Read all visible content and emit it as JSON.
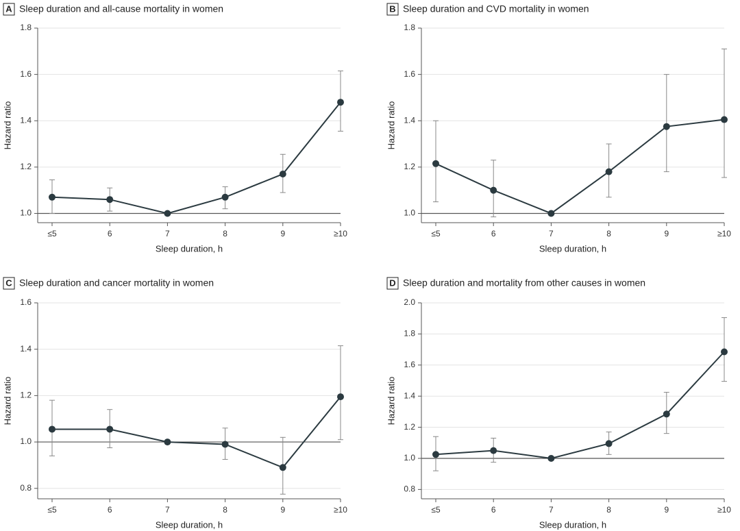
{
  "chart_data": [
    {
      "type": "line",
      "label": "A",
      "title": "Sleep duration and all-cause mortality in women",
      "xlabel": "Sleep duration, h",
      "ylabel": "Hazard ratio",
      "categories": [
        "≤5",
        "6",
        "7",
        "8",
        "9",
        "≥10"
      ],
      "values": [
        1.07,
        1.06,
        1.0,
        1.07,
        1.17,
        1.48
      ],
      "lower": [
        1.0,
        1.01,
        null,
        1.02,
        1.09,
        1.355
      ],
      "upper": [
        1.145,
        1.11,
        null,
        1.115,
        1.255,
        1.615
      ],
      "color": "#2b3a40",
      "reference_line": 1,
      "ylim": [
        0.96,
        1.8
      ],
      "yticks": [
        {
          "value": 1,
          "label": "1.0"
        },
        1.2,
        1.4,
        1.6,
        1.8
      ]
    },
    {
      "type": "line",
      "label": "B",
      "title": "Sleep duration and CVD mortality in women",
      "xlabel": "Sleep duration, h",
      "ylabel": "Hazard ratio",
      "categories": [
        "≤5",
        "6",
        "7",
        "8",
        "9",
        "≥10"
      ],
      "values": [
        1.215,
        1.1,
        1.0,
        1.18,
        1.375,
        1.405
      ],
      "lower": [
        1.05,
        0.985,
        null,
        1.07,
        1.18,
        1.155
      ],
      "upper": [
        1.4,
        1.23,
        null,
        1.3,
        1.6,
        1.71
      ],
      "color": "#2b3a40",
      "reference_line": 1,
      "ylim": [
        0.96,
        1.8
      ],
      "yticks": [
        {
          "value": 1,
          "label": "1.0"
        },
        1.2,
        1.4,
        1.6,
        1.8
      ]
    },
    {
      "type": "line",
      "label": "C",
      "title": "Sleep duration and cancer mortality in women",
      "xlabel": "Sleep duration, h",
      "ylabel": "Hazard ratio",
      "categories": [
        "≤5",
        "6",
        "7",
        "8",
        "9",
        "≥10"
      ],
      "values": [
        1.055,
        1.055,
        1.0,
        0.99,
        0.89,
        1.195
      ],
      "lower": [
        0.94,
        0.975,
        null,
        0.925,
        0.775,
        1.01
      ],
      "upper": [
        1.18,
        1.14,
        null,
        1.06,
        1.02,
        1.415
      ],
      "color": "#2b3a40",
      "reference_line": 1,
      "ylim": [
        0.755,
        1.6
      ],
      "yticks": [
        0.8,
        {
          "value": 1,
          "label": "1.0"
        },
        1.2,
        1.4,
        1.6
      ]
    },
    {
      "type": "line",
      "label": "D",
      "title": "Sleep duration and mortality from other causes in women",
      "xlabel": "Sleep duration, h",
      "ylabel": "Hazard ratio",
      "categories": [
        "≤5",
        "6",
        "7",
        "8",
        "9",
        "≥10"
      ],
      "values": [
        1.025,
        1.05,
        1.0,
        1.095,
        1.285,
        1.685
      ],
      "lower": [
        0.92,
        0.975,
        null,
        1.025,
        1.16,
        1.495
      ],
      "upper": [
        1.14,
        1.13,
        null,
        1.17,
        1.425,
        1.905
      ],
      "color": "#2b3a40",
      "reference_line": 1,
      "ylim": [
        0.74,
        2.0
      ],
      "yticks": [
        0.8,
        {
          "value": 1,
          "label": "1.0"
        },
        1.2,
        1.4,
        1.6,
        1.8,
        {
          "value": 2,
          "label": "2.0"
        }
      ]
    }
  ]
}
